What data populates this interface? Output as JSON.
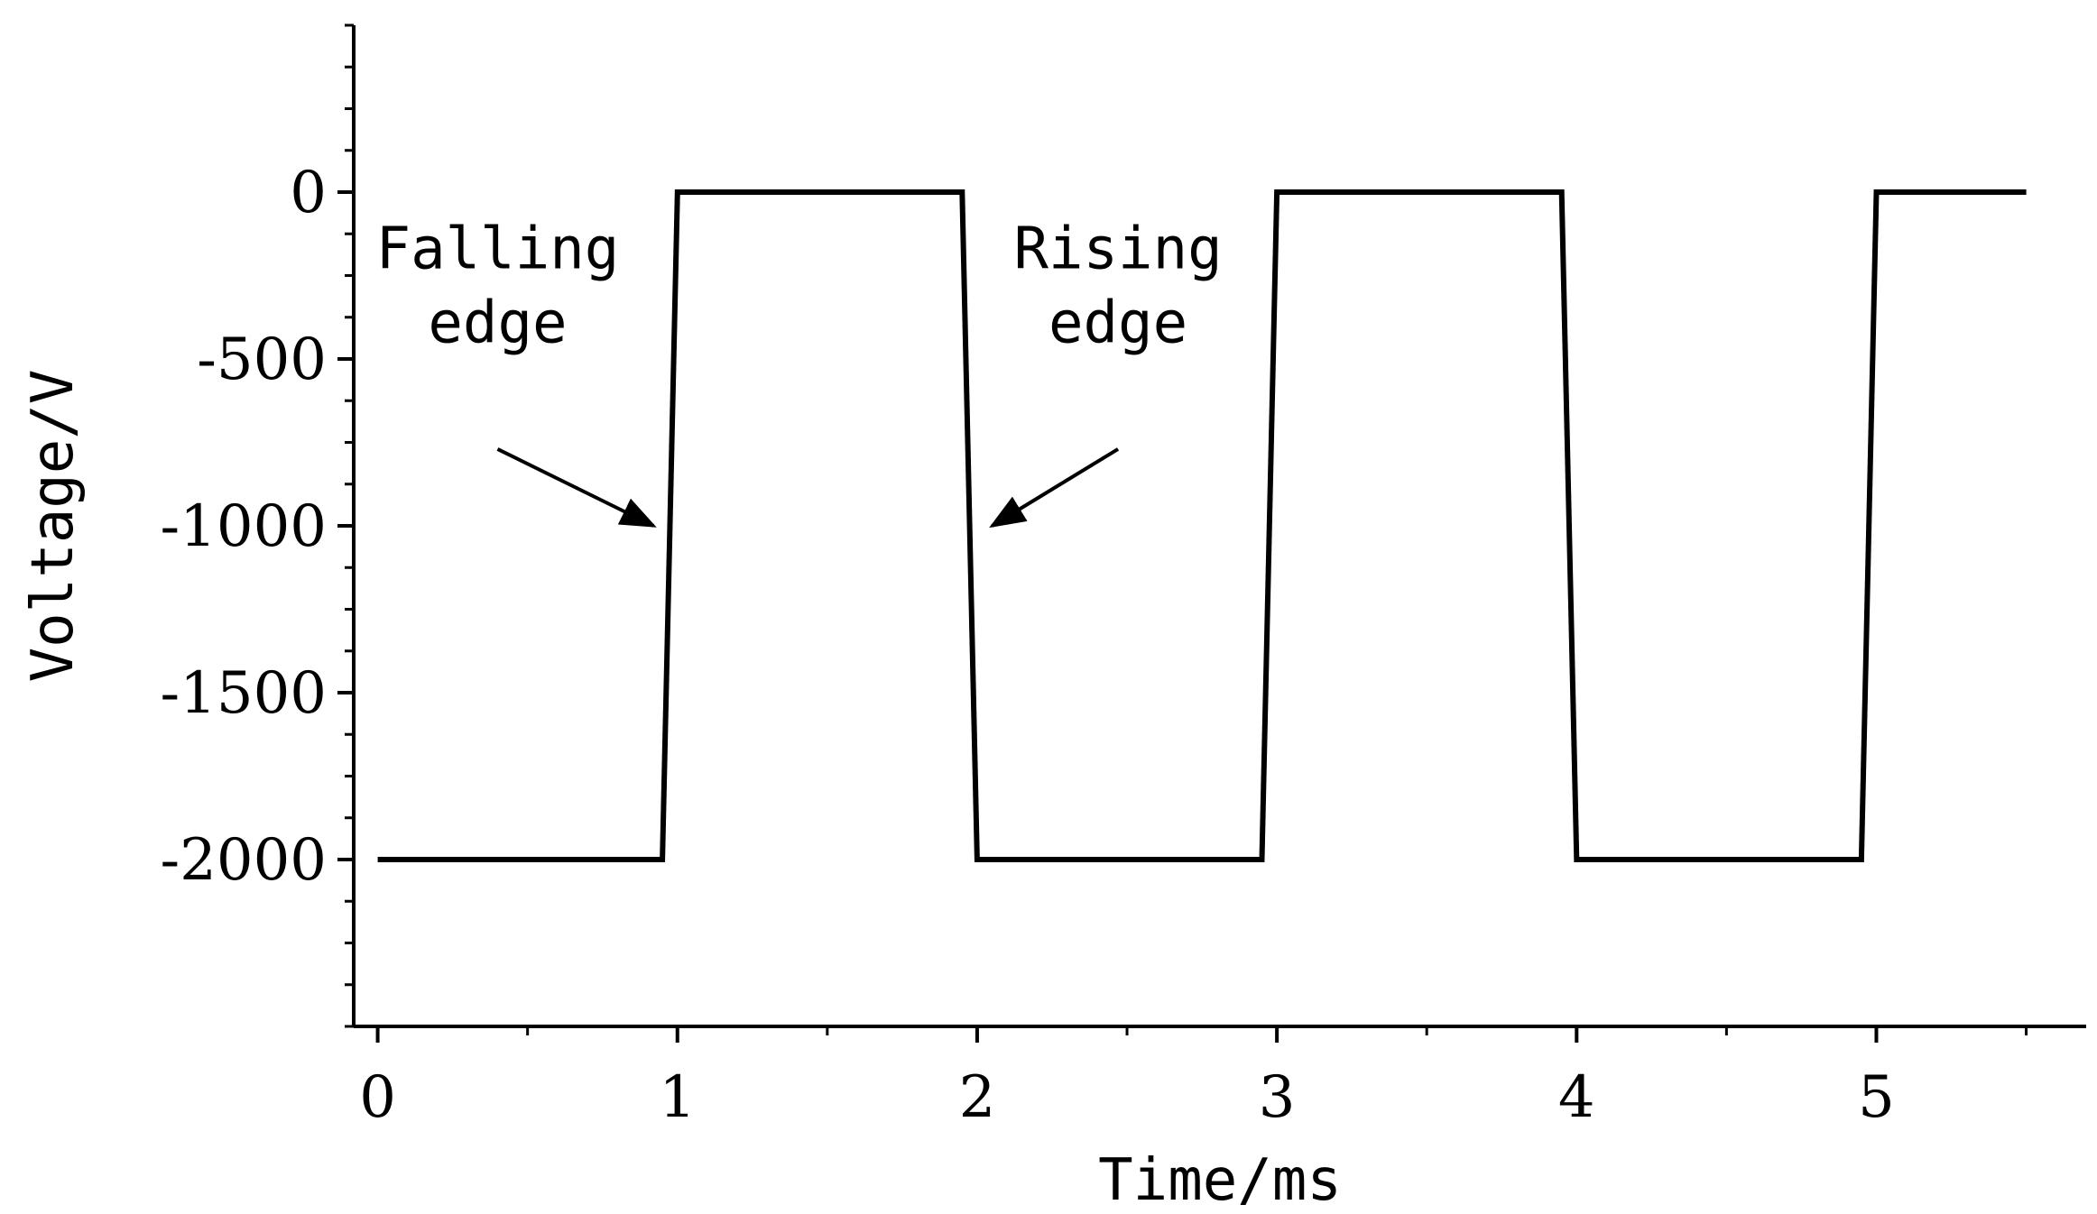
{
  "chart_data": {
    "type": "line",
    "xlabel": "Time/ms",
    "ylabel": "Voltage/V",
    "xlim": [
      -0.08,
      5.7
    ],
    "ylim": [
      -2500,
      500
    ],
    "xticks": [
      0,
      1,
      2,
      3,
      4,
      5
    ],
    "xtick_labels": [
      "0",
      "1",
      "2",
      "3",
      "4",
      "5"
    ],
    "yticks": [
      0,
      -500,
      -1000,
      -1500,
      -2000
    ],
    "ytick_labels": [
      "0",
      "-500",
      "-1000",
      "-1500",
      "-2000"
    ],
    "grid": false,
    "series": [
      {
        "x": [
          0,
          0.95,
          1.0,
          1.95,
          2.0,
          2.95,
          3.0,
          3.95,
          4.0,
          4.95,
          5.0,
          5.5
        ],
        "y": [
          -2000,
          -2000,
          0,
          0,
          -2000,
          -2000,
          0,
          0,
          -2000,
          -2000,
          0,
          0
        ],
        "color": "#000000"
      }
    ],
    "annotations": [
      {
        "lines": [
          "Falling",
          "edge"
        ],
        "text_at": [
          0.4,
          -450
        ],
        "arrow_from": [
          0.4,
          -770
        ],
        "arrow_to": [
          0.92,
          -1000
        ]
      },
      {
        "lines": [
          "Rising",
          "edge"
        ],
        "text_at": [
          2.47,
          -450
        ],
        "arrow_from": [
          2.47,
          -770
        ],
        "arrow_to": [
          2.05,
          -1000
        ]
      }
    ]
  }
}
